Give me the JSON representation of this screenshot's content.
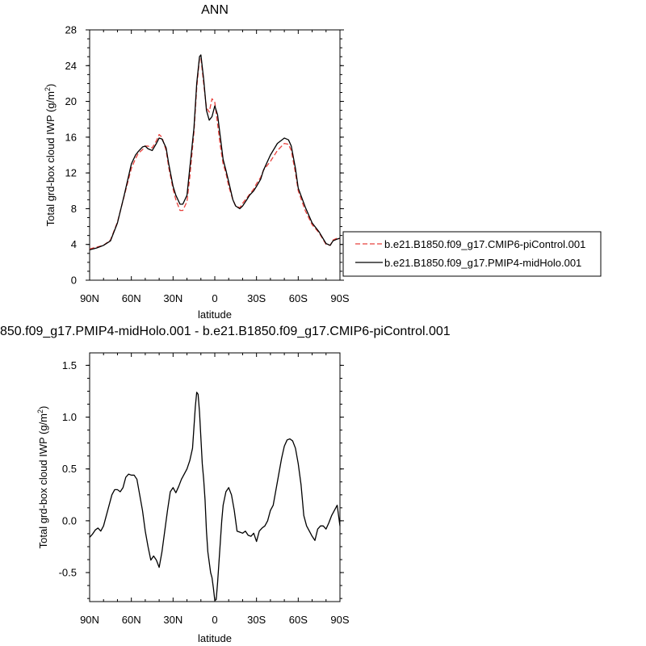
{
  "figure": {
    "top_title": "ANN",
    "bottom_title": "850.f09_g17.PMIP4-midHolo.001 - b.e21.B1850.f09_g17.CMIP6-piControl.001"
  },
  "colors": {
    "control": "#e8413c",
    "midholo": "#000000",
    "difference": "#000000",
    "frame": "#000000",
    "background": "#ffffff"
  },
  "chart_data": [
    {
      "type": "line",
      "title": "ANN",
      "xlabel": "latitude",
      "ylabel_text": "Total grd-box cloud IWP (g/m",
      "ylabel_sup": "2",
      "ylabel_close": ")",
      "xlim": [
        90,
        -90
      ],
      "ylim": [
        0,
        28
      ],
      "xticks": [
        {
          "value": 90,
          "label": "90N"
        },
        {
          "value": 60,
          "label": "60N"
        },
        {
          "value": 30,
          "label": "30N"
        },
        {
          "value": 0,
          "label": "0"
        },
        {
          "value": -30,
          "label": "30S"
        },
        {
          "value": -60,
          "label": "60S"
        },
        {
          "value": -90,
          "label": "90S"
        }
      ],
      "yticks": [
        0,
        4,
        8,
        12,
        16,
        20,
        24,
        28
      ],
      "grid": false,
      "legend_position": "right",
      "series": [
        {
          "name": "b.e21.B1850.f09_g17.CMIP6-piControl.001",
          "style": "dashed",
          "color_key": "control",
          "x": [
            90,
            85,
            80,
            75,
            70,
            65,
            60,
            57,
            55,
            52,
            50,
            48,
            45,
            42,
            40,
            38,
            35,
            33,
            30,
            28,
            25,
            23,
            20,
            18,
            15,
            13,
            11,
            10,
            8,
            6,
            4,
            2,
            0,
            -2,
            -4,
            -6,
            -8,
            -10,
            -13,
            -15,
            -18,
            -20,
            -23,
            -25,
            -28,
            -30,
            -33,
            -35,
            -40,
            -45,
            -50,
            -53,
            -55,
            -58,
            -60,
            -65,
            -70,
            -75,
            -80,
            -83,
            -85,
            -88,
            -90
          ],
          "y": [
            3.5,
            3.7,
            3.9,
            4.5,
            6.5,
            9.5,
            12.5,
            13.6,
            14.2,
            14.6,
            15.0,
            15.0,
            14.8,
            15.6,
            16.3,
            16.0,
            14.5,
            12.5,
            10.2,
            9.0,
            7.8,
            7.8,
            8.8,
            11.5,
            16.5,
            21.5,
            24.8,
            24.9,
            22.0,
            19.3,
            18.8,
            20.3,
            19.9,
            17.5,
            15.0,
            13.0,
            12.0,
            10.5,
            9.0,
            8.3,
            8.1,
            8.6,
            9.2,
            9.6,
            10.2,
            10.8,
            11.5,
            12.3,
            13.3,
            14.5,
            15.3,
            15.2,
            14.5,
            12.0,
            10.0,
            7.8,
            6.2,
            5.3,
            4.0,
            3.9,
            4.5,
            4.7,
            4.6
          ]
        },
        {
          "name": "b.e21.B1850.f09_g17.PMIP4-midHolo.001",
          "style": "solid",
          "color_key": "midholo",
          "x": [
            90,
            85,
            80,
            75,
            70,
            65,
            60,
            57,
            55,
            52,
            50,
            48,
            45,
            42,
            40,
            38,
            35,
            33,
            30,
            28,
            25,
            23,
            20,
            18,
            15,
            13,
            11,
            10,
            8,
            6,
            4,
            2,
            0,
            -2,
            -4,
            -6,
            -8,
            -10,
            -13,
            -15,
            -18,
            -20,
            -23,
            -25,
            -28,
            -30,
            -33,
            -35,
            -40,
            -45,
            -50,
            -53,
            -55,
            -58,
            -60,
            -65,
            -70,
            -75,
            -80,
            -83,
            -85,
            -88,
            -90
          ],
          "y": [
            3.4,
            3.6,
            3.9,
            4.4,
            6.4,
            9.6,
            13.0,
            14.0,
            14.4,
            14.9,
            15.0,
            14.7,
            14.5,
            15.3,
            15.9,
            15.8,
            14.8,
            12.9,
            10.5,
            9.5,
            8.5,
            8.5,
            9.5,
            12.5,
            17.0,
            22.0,
            25.0,
            25.2,
            22.5,
            19.0,
            17.9,
            18.3,
            19.5,
            18.5,
            16.0,
            13.5,
            12.3,
            11.0,
            9.0,
            8.3,
            8.0,
            8.3,
            9.0,
            9.5,
            10.0,
            10.5,
            11.3,
            12.3,
            14.0,
            15.3,
            15.9,
            15.7,
            15.0,
            12.5,
            10.3,
            8.2,
            6.4,
            5.4,
            4.1,
            3.9,
            4.4,
            4.6,
            4.7
          ]
        }
      ]
    },
    {
      "type": "line",
      "title": "850.f09_g17.PMIP4-midHolo.001 - b.e21.B1850.f09_g17.CMIP6-piControl.001",
      "xlabel": "latitude",
      "ylabel_text": "Total grd-box cloud IWP (g/m",
      "ylabel_sup": "2",
      "ylabel_close": ")",
      "xlim": [
        90,
        -90
      ],
      "ylim": [
        -0.78,
        1.62
      ],
      "xticks": [
        {
          "value": 90,
          "label": "90N"
        },
        {
          "value": 60,
          "label": "60N"
        },
        {
          "value": 30,
          "label": "30N"
        },
        {
          "value": 0,
          "label": "0"
        },
        {
          "value": -30,
          "label": "30S"
        },
        {
          "value": -60,
          "label": "60S"
        },
        {
          "value": -90,
          "label": "90S"
        }
      ],
      "yticks": [
        {
          "value": -0.5,
          "label": "-0.5"
        },
        {
          "value": 0.0,
          "label": "0.0"
        },
        {
          "value": 0.5,
          "label": "0.5"
        },
        {
          "value": 1.0,
          "label": "1.0"
        },
        {
          "value": 1.5,
          "label": "1.5"
        }
      ],
      "grid": false,
      "series": [
        {
          "style": "solid",
          "color_key": "difference",
          "x": [
            90,
            88,
            86,
            84,
            82,
            80,
            78,
            76,
            74,
            72,
            70,
            68,
            66,
            64,
            62,
            60,
            58,
            56,
            54,
            52,
            50,
            48,
            46,
            44,
            42,
            40,
            38,
            36,
            34,
            32,
            30,
            28,
            26,
            24,
            22,
            20,
            18,
            16,
            15,
            14,
            13,
            12,
            11,
            10,
            9,
            8,
            7,
            6,
            5,
            4,
            3,
            2,
            1,
            0,
            -1,
            -2,
            -3,
            -4,
            -5,
            -6,
            -8,
            -10,
            -12,
            -14,
            -16,
            -18,
            -20,
            -22,
            -24,
            -26,
            -28,
            -30,
            -32,
            -34,
            -36,
            -38,
            -40,
            -42,
            -44,
            -46,
            -48,
            -50,
            -52,
            -54,
            -56,
            -58,
            -60,
            -62,
            -64,
            -66,
            -68,
            -70,
            -72,
            -74,
            -76,
            -78,
            -80,
            -82,
            -84,
            -86,
            -88,
            -90
          ],
          "y": [
            -0.16,
            -0.13,
            -0.09,
            -0.07,
            -0.1,
            -0.05,
            0.05,
            0.15,
            0.25,
            0.3,
            0.3,
            0.28,
            0.32,
            0.42,
            0.45,
            0.44,
            0.44,
            0.4,
            0.25,
            0.1,
            -0.1,
            -0.25,
            -0.38,
            -0.34,
            -0.38,
            -0.45,
            -0.3,
            -0.1,
            0.1,
            0.28,
            0.32,
            0.27,
            0.33,
            0.4,
            0.45,
            0.5,
            0.58,
            0.7,
            0.9,
            1.1,
            1.24,
            1.22,
            1.05,
            0.8,
            0.55,
            0.4,
            0.2,
            -0.1,
            -0.3,
            -0.4,
            -0.5,
            -0.55,
            -0.65,
            -0.77,
            -0.76,
            -0.6,
            -0.4,
            -0.2,
            0.0,
            0.15,
            0.28,
            0.32,
            0.25,
            0.1,
            -0.1,
            -0.11,
            -0.12,
            -0.1,
            -0.14,
            -0.15,
            -0.12,
            -0.2,
            -0.1,
            -0.07,
            -0.05,
            0.0,
            0.1,
            0.15,
            0.3,
            0.45,
            0.6,
            0.72,
            0.78,
            0.79,
            0.77,
            0.7,
            0.55,
            0.35,
            0.05,
            -0.05,
            -0.1,
            -0.15,
            -0.19,
            -0.08,
            -0.05,
            -0.05,
            -0.08,
            -0.02,
            0.05,
            0.1,
            0.15,
            -0.05
          ]
        }
      ]
    }
  ]
}
